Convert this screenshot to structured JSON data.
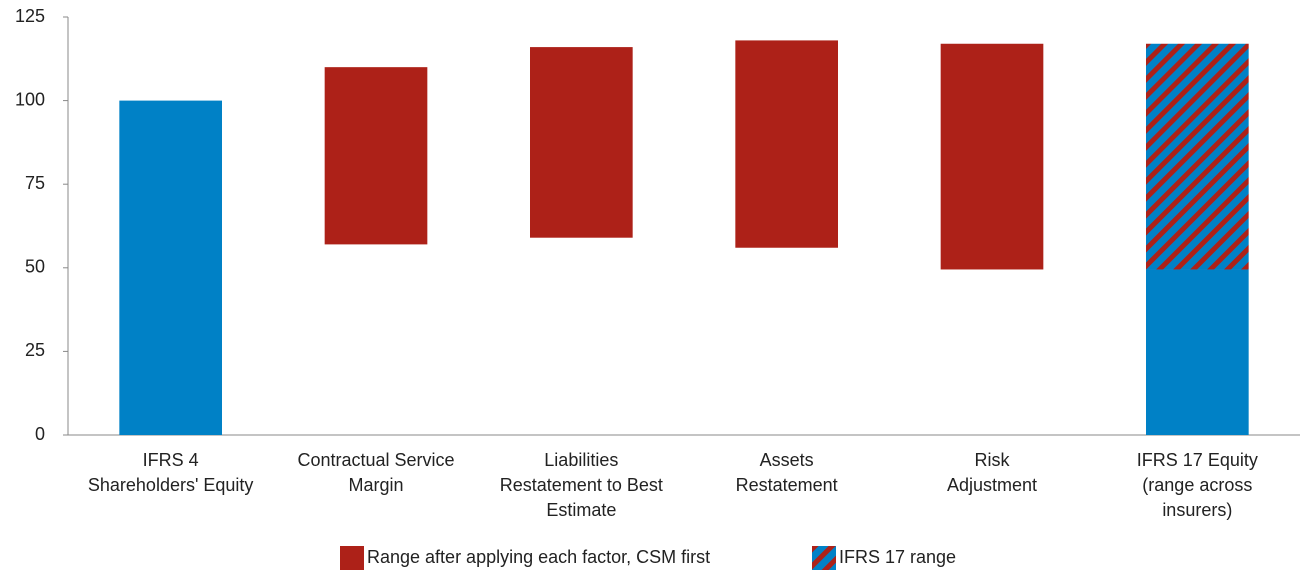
{
  "chart_data": {
    "type": "floating-bar",
    "categories": [
      [
        "IFRS 4",
        "Shareholders' Equity"
      ],
      [
        "Contractual Service",
        "Margin"
      ],
      [
        "Liabilities",
        "Restatement to Best",
        "Estimate"
      ],
      [
        "Assets",
        "Restatement"
      ],
      [
        "Risk",
        "Adjustment"
      ],
      [
        "IFRS 17 Equity",
        "(range across",
        "insurers)"
      ]
    ],
    "base": {
      "color": "#0081c6",
      "values": [
        100,
        null,
        null,
        null,
        null,
        49.5
      ]
    },
    "series": [
      {
        "name": "Range after applying each factor, CSM first",
        "color": "#ad2118",
        "low": [
          null,
          57,
          59,
          56,
          49.5,
          null
        ],
        "high": [
          null,
          110,
          116,
          118,
          117,
          null
        ]
      },
      {
        "name": "IFRS 17  range",
        "color": "#ad2118",
        "hatch_color": "#0081c6",
        "low": [
          null,
          null,
          null,
          null,
          null,
          49.5
        ],
        "high": [
          null,
          null,
          null,
          null,
          null,
          117
        ]
      }
    ],
    "ylim": [
      0,
      125
    ],
    "yticks": [
      0,
      25,
      50,
      75,
      100,
      125
    ],
    "grid": false
  }
}
